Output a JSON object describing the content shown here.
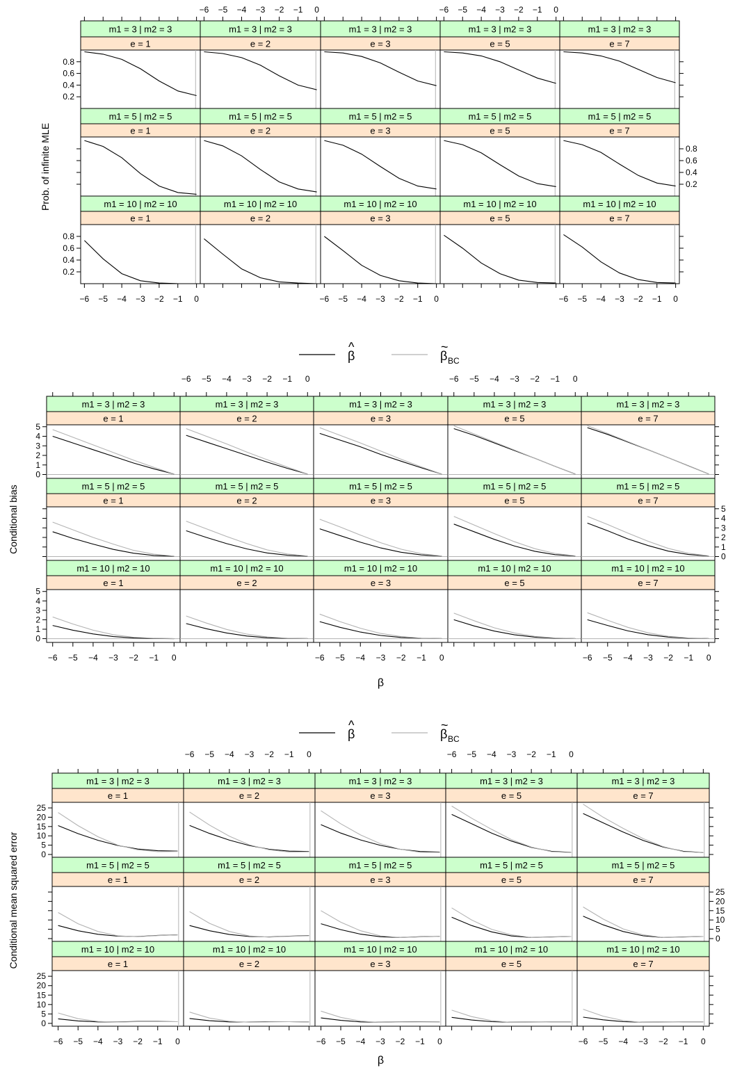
{
  "colors": {
    "strip_top": "#ccffcc",
    "strip_bottom": "#ffe5cc",
    "mle_line": "#000000",
    "bc_line": "#b3b3b3",
    "reference_line": "#b3b3b3"
  },
  "legend": [
    {
      "symbol": "β",
      "accent": "^",
      "subscript": "",
      "color": "#000000"
    },
    {
      "symbol": "β",
      "accent": "~",
      "subscript": "BC",
      "color": "#b3b3b3"
    }
  ],
  "chart_data": [
    {
      "type": "line",
      "ylabel": "Prob. of infinite MLE",
      "xlabel": "",
      "legend_below": true,
      "xlim": [
        -6.2,
        0.2
      ],
      "ylim": [
        0,
        1
      ],
      "x_ticks": [
        "−6",
        "−5",
        "−4",
        "−3",
        "−2",
        "−1",
        "0"
      ],
      "y_ticks": [
        "0.2",
        "0.4",
        "0.6",
        "0.8"
      ],
      "y_tick_values": [
        0.2,
        0.4,
        0.6,
        0.8
      ],
      "reference": {
        "orientation": "vertical",
        "value": -0.05
      },
      "columns": [
        "e = 1",
        "e = 2",
        "e = 3",
        "e = 5",
        "e = 7"
      ],
      "rows": [
        "m1 = 3 | m2 = 3",
        "m1 = 5 | m2 = 5",
        "m1 = 10 | m2 = 10"
      ],
      "x": [
        -6,
        -5,
        -4,
        -3,
        -2,
        -1,
        0
      ],
      "series": [
        {
          "values": [
            [
              [
                0.97,
                0.93,
                0.84,
                0.68,
                0.47,
                0.3,
                0.22
              ],
              [
                0.97,
                0.94,
                0.87,
                0.74,
                0.56,
                0.4,
                0.32
              ],
              [
                0.97,
                0.95,
                0.89,
                0.78,
                0.62,
                0.47,
                0.39
              ],
              [
                0.97,
                0.95,
                0.9,
                0.8,
                0.66,
                0.52,
                0.43
              ],
              [
                0.97,
                0.95,
                0.9,
                0.81,
                0.67,
                0.53,
                0.44
              ]
            ],
            [
              [
                0.94,
                0.84,
                0.65,
                0.38,
                0.17,
                0.06,
                0.03
              ],
              [
                0.94,
                0.85,
                0.68,
                0.45,
                0.24,
                0.12,
                0.07
              ],
              [
                0.94,
                0.86,
                0.71,
                0.5,
                0.3,
                0.17,
                0.12
              ],
              [
                0.94,
                0.87,
                0.73,
                0.53,
                0.34,
                0.21,
                0.16
              ],
              [
                0.94,
                0.87,
                0.74,
                0.54,
                0.35,
                0.22,
                0.17
              ]
            ],
            [
              [
                0.73,
                0.42,
                0.17,
                0.05,
                0.01,
                0.0,
                0.0
              ],
              [
                0.76,
                0.5,
                0.25,
                0.1,
                0.03,
                0.01,
                0.0
              ],
              [
                0.8,
                0.56,
                0.31,
                0.14,
                0.05,
                0.01,
                0.0
              ],
              [
                0.82,
                0.6,
                0.35,
                0.17,
                0.06,
                0.02,
                0.01
              ],
              [
                0.83,
                0.62,
                0.37,
                0.18,
                0.07,
                0.02,
                0.01
              ]
            ]
          ]
        }
      ]
    },
    {
      "type": "line",
      "ylabel": "Conditional bias",
      "xlabel": "β",
      "legend_below": true,
      "xlim": [
        -6.3,
        0.3
      ],
      "ylim": [
        -0.4,
        5.2
      ],
      "x_ticks": [
        "−6",
        "−5",
        "−4",
        "−3",
        "−2",
        "−1",
        "0"
      ],
      "y_ticks": [
        "0",
        "1",
        "2",
        "3",
        "4",
        "5"
      ],
      "y_tick_values": [
        0,
        1,
        2,
        3,
        4,
        5
      ],
      "reference": {
        "orientation": "horizontal",
        "value": 0
      },
      "columns": [
        "e = 1",
        "e = 2",
        "e = 3",
        "e = 5",
        "e = 7"
      ],
      "rows": [
        "m1 = 3 | m2 = 3",
        "m1 = 5 | m2 = 5",
        "m1 = 10 | m2 = 10"
      ],
      "x": [
        -6,
        -5,
        -4,
        -3,
        -2,
        -1,
        0
      ],
      "series": [
        {
          "values": [
            [
              [
                4.0,
                3.3,
                2.6,
                1.9,
                1.2,
                0.6,
                0.05
              ],
              [
                4.1,
                3.4,
                2.7,
                2.0,
                1.3,
                0.65,
                0.05
              ],
              [
                4.3,
                3.6,
                2.9,
                2.1,
                1.4,
                0.7,
                0.05
              ],
              [
                4.8,
                4.1,
                3.3,
                2.5,
                1.7,
                0.85,
                0.05
              ],
              [
                4.9,
                4.2,
                3.4,
                2.6,
                1.75,
                0.9,
                0.05
              ]
            ],
            [
              [
                2.6,
                1.9,
                1.3,
                0.75,
                0.35,
                0.12,
                0.03
              ],
              [
                2.7,
                2.0,
                1.35,
                0.8,
                0.38,
                0.14,
                0.04
              ],
              [
                2.9,
                2.2,
                1.5,
                0.9,
                0.45,
                0.17,
                0.05
              ],
              [
                3.4,
                2.6,
                1.8,
                1.1,
                0.55,
                0.2,
                0.06
              ],
              [
                3.5,
                2.7,
                1.85,
                1.15,
                0.57,
                0.21,
                0.06
              ]
            ],
            [
              [
                1.4,
                0.9,
                0.5,
                0.22,
                0.07,
                0.02,
                0.0
              ],
              [
                1.6,
                1.05,
                0.6,
                0.28,
                0.1,
                0.03,
                0.01
              ],
              [
                1.8,
                1.2,
                0.7,
                0.34,
                0.13,
                0.04,
                0.01
              ],
              [
                2.0,
                1.35,
                0.8,
                0.4,
                0.16,
                0.05,
                0.01
              ],
              [
                2.0,
                1.4,
                0.82,
                0.42,
                0.17,
                0.05,
                0.01
              ]
            ]
          ]
        },
        {
          "values": [
            [
              [
                4.7,
                3.9,
                3.1,
                2.3,
                1.5,
                0.75,
                0.05
              ],
              [
                4.8,
                4.0,
                3.2,
                2.35,
                1.55,
                0.78,
                0.05
              ],
              [
                4.9,
                4.1,
                3.3,
                2.45,
                1.6,
                0.8,
                0.05
              ],
              [
                5.1,
                4.25,
                3.4,
                2.55,
                1.7,
                0.85,
                0.05
              ],
              [
                5.1,
                4.3,
                3.45,
                2.6,
                1.75,
                0.88,
                0.05
              ]
            ],
            [
              [
                3.6,
                2.8,
                2.0,
                1.3,
                0.65,
                0.25,
                0.05
              ],
              [
                3.7,
                2.9,
                2.1,
                1.35,
                0.7,
                0.27,
                0.06
              ],
              [
                3.9,
                3.1,
                2.25,
                1.45,
                0.77,
                0.3,
                0.06
              ],
              [
                4.2,
                3.3,
                2.4,
                1.55,
                0.82,
                0.33,
                0.07
              ],
              [
                4.2,
                3.35,
                2.45,
                1.6,
                0.85,
                0.34,
                0.07
              ]
            ],
            [
              [
                2.3,
                1.55,
                0.9,
                0.42,
                0.15,
                0.04,
                0.01
              ],
              [
                2.4,
                1.65,
                0.98,
                0.48,
                0.18,
                0.05,
                0.01
              ],
              [
                2.6,
                1.8,
                1.1,
                0.55,
                0.22,
                0.06,
                0.01
              ],
              [
                2.7,
                1.9,
                1.15,
                0.6,
                0.24,
                0.07,
                0.01
              ],
              [
                2.75,
                1.95,
                1.2,
                0.62,
                0.25,
                0.07,
                0.01
              ]
            ]
          ]
        }
      ]
    },
    {
      "type": "line",
      "ylabel": "Conditional mean squared error",
      "xlabel": "β",
      "legend_below": false,
      "xlim": [
        -6.3,
        0.3
      ],
      "ylim": [
        -1.5,
        28
      ],
      "x_ticks": [
        "−6",
        "−5",
        "−4",
        "−3",
        "−2",
        "−1",
        "0"
      ],
      "y_ticks": [
        "0",
        "5",
        "10",
        "15",
        "20",
        "25"
      ],
      "y_tick_values": [
        0,
        5,
        10,
        15,
        20,
        25
      ],
      "reference": {
        "orientation": "vertical",
        "value": 0.05
      },
      "columns": [
        "e = 1",
        "e = 2",
        "e = 3",
        "e = 5",
        "e = 7"
      ],
      "rows": [
        "m1 = 3 | m2 = 3",
        "m1 = 5 | m2 = 5",
        "m1 = 10 | m2 = 10"
      ],
      "x": [
        -6,
        -5,
        -4,
        -3,
        -2,
        -1,
        0
      ],
      "series": [
        {
          "values": [
            [
              [
                15.5,
                11.2,
                7.6,
                4.8,
                2.9,
                2.0,
                1.8
              ],
              [
                15.6,
                11.3,
                7.7,
                4.8,
                2.8,
                1.8,
                1.6
              ],
              [
                16.0,
                11.5,
                7.8,
                4.9,
                2.8,
                1.6,
                1.3
              ],
              [
                21.5,
                16.5,
                11.5,
                7.2,
                3.8,
                1.7,
                1.1
              ],
              [
                22.0,
                17.0,
                12.0,
                7.5,
                4.0,
                1.7,
                1.0
              ]
            ],
            [
              [
                7.0,
                4.2,
                2.3,
                1.3,
                1.1,
                1.7,
                2.0
              ],
              [
                7.0,
                4.2,
                2.2,
                1.1,
                0.9,
                1.3,
                1.6
              ],
              [
                8.0,
                4.8,
                2.4,
                1.0,
                0.6,
                1.0,
                1.2
              ],
              [
                11.5,
                7.0,
                3.6,
                1.4,
                0.6,
                0.9,
                1.1
              ],
              [
                12.0,
                7.4,
                3.8,
                1.5,
                0.6,
                0.9,
                1.1
              ]
            ],
            [
              [
                2.4,
                1.3,
                0.8,
                0.8,
                1.0,
                1.0,
                0.9
              ],
              [
                2.6,
                1.4,
                0.8,
                0.7,
                0.9,
                0.9,
                0.8
              ],
              [
                2.9,
                1.6,
                0.8,
                0.6,
                0.8,
                0.9,
                0.8
              ],
              [
                3.2,
                1.8,
                0.9,
                0.6,
                0.7,
                0.8,
                0.8
              ],
              [
                3.3,
                1.9,
                0.9,
                0.6,
                0.7,
                0.8,
                0.8
              ]
            ]
          ]
        },
        {
          "values": [
            [
              [
                22.5,
                15.5,
                9.5,
                5.0,
                2.5,
                1.5,
                1.6
              ],
              [
                22.8,
                15.8,
                9.8,
                5.2,
                2.5,
                1.3,
                1.4
              ],
              [
                23.5,
                16.5,
                10.5,
                5.8,
                2.8,
                1.2,
                1.1
              ],
              [
                26.0,
                19.5,
                13.5,
                8.0,
                4.0,
                1.5,
                1.0
              ],
              [
                27.0,
                20.0,
                14.0,
                8.5,
                4.2,
                1.5,
                1.0
              ]
            ],
            [
              [
                14.0,
                8.0,
                3.8,
                1.5,
                1.0,
                1.6,
                2.0
              ],
              [
                14.5,
                8.2,
                3.8,
                1.4,
                0.8,
                1.2,
                1.5
              ],
              [
                15.0,
                8.8,
                4.2,
                1.5,
                0.6,
                0.9,
                1.2
              ],
              [
                16.5,
                10.0,
                5.0,
                2.0,
                0.6,
                0.8,
                1.1
              ],
              [
                17.0,
                10.5,
                5.2,
                2.0,
                0.6,
                0.8,
                1.1
              ]
            ],
            [
              [
                5.5,
                2.5,
                1.0,
                0.7,
                0.9,
                0.9,
                0.9
              ],
              [
                6.0,
                2.8,
                1.1,
                0.6,
                0.8,
                0.9,
                0.8
              ],
              [
                6.5,
                3.2,
                1.2,
                0.5,
                0.7,
                0.8,
                0.8
              ],
              [
                7.0,
                3.6,
                1.4,
                0.5,
                0.6,
                0.8,
                0.8
              ],
              [
                7.5,
                3.8,
                1.5,
                0.5,
                0.6,
                0.8,
                0.8
              ]
            ]
          ]
        }
      ]
    }
  ]
}
